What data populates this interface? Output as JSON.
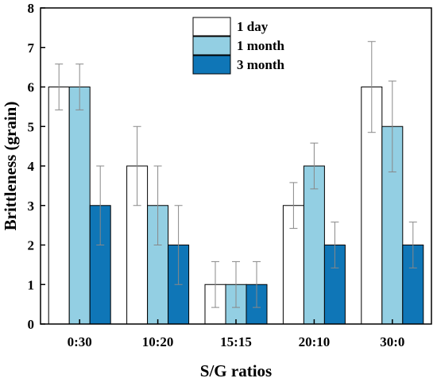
{
  "chart_data": {
    "type": "bar",
    "title": "",
    "xlabel": "S/G ratios",
    "ylabel": "Brittleness (grain)",
    "ylim": [
      0,
      8
    ],
    "yticks": [
      0,
      1,
      2,
      3,
      4,
      5,
      6,
      7,
      8
    ],
    "categories": [
      "0:30",
      "10:20",
      "15:15",
      "20:10",
      "30:0"
    ],
    "series": [
      {
        "name": "1 day",
        "color": "#ffffff",
        "values": [
          6,
          4,
          1,
          3,
          6
        ],
        "errors": [
          0.58,
          1.0,
          0.58,
          0.58,
          1.15
        ]
      },
      {
        "name": "1 month",
        "color": "#93cfe3",
        "values": [
          6,
          3,
          1,
          4,
          5
        ],
        "errors": [
          0.58,
          1.0,
          0.58,
          0.58,
          1.15
        ]
      },
      {
        "name": "3 month",
        "color": "#0f76b7",
        "values": [
          3,
          2,
          1,
          2,
          2
        ],
        "errors": [
          1.0,
          1.0,
          0.58,
          0.58,
          0.58
        ]
      }
    ],
    "legend_position": "top-right",
    "grid": false
  }
}
